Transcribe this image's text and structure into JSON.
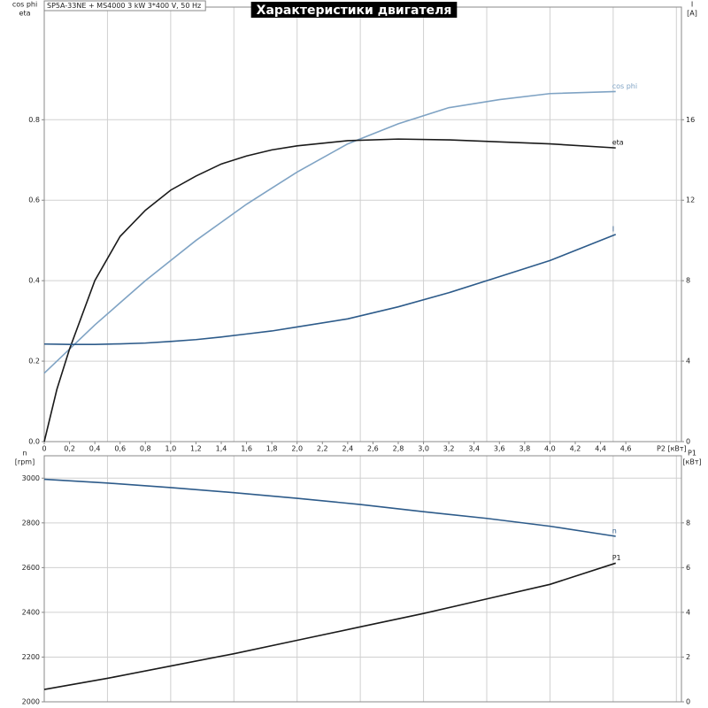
{
  "chart_data": [
    {
      "type": "line",
      "title": "Характеристики двигателя",
      "subtitle": "SP5A-33NE + MS4000  3 kW  3*400 V, 50 Hz",
      "ylabel": [
        "cos phi",
        "eta"
      ],
      "y2label": [
        "I",
        "[A]"
      ],
      "xlabel": "P2 [кВт]",
      "x": [
        0,
        0.1,
        0.2,
        0.4,
        0.6,
        0.8,
        1.0,
        1.2,
        1.4,
        1.6,
        1.8,
        2.0,
        2.4,
        2.8,
        3.2,
        3.6,
        4.0,
        4.52
      ],
      "series": [
        {
          "name": "cos phi",
          "color": "#7fa3c4",
          "values": [
            0.17,
            0.2,
            0.23,
            0.29,
            0.345,
            0.4,
            0.45,
            0.5,
            0.545,
            0.59,
            0.63,
            0.67,
            0.74,
            0.79,
            0.83,
            0.85,
            0.865,
            0.87
          ]
        },
        {
          "name": "eta",
          "color": "#1a1a1a",
          "values": [
            0,
            0.13,
            0.23,
            0.4,
            0.51,
            0.575,
            0.625,
            0.66,
            0.69,
            0.71,
            0.725,
            0.735,
            0.748,
            0.752,
            0.75,
            0.745,
            0.74,
            0.73
          ]
        },
        {
          "name": "I",
          "color": "#2d5b8a",
          "axis": "y2",
          "values": [
            4.85,
            4.84,
            4.83,
            4.83,
            4.86,
            4.9,
            4.98,
            5.07,
            5.2,
            5.35,
            5.5,
            5.7,
            6.1,
            6.7,
            7.4,
            8.2,
            9.0,
            10.3
          ]
        }
      ],
      "xlim": [
        0,
        5.04
      ],
      "xticks": [
        0,
        {
          "value": 0.2,
          "label": "0,2"
        },
        {
          "value": 0.4,
          "label": "0,4"
        },
        {
          "value": 0.6,
          "label": "0,6"
        },
        {
          "value": 0.8,
          "label": "0,8"
        },
        {
          "value": 1.0,
          "label": "1,0"
        },
        {
          "value": 1.2,
          "label": "1,2"
        },
        {
          "value": 1.4,
          "label": "1,4"
        },
        {
          "value": 1.6,
          "label": "1,6"
        },
        {
          "value": 1.8,
          "label": "1,8"
        },
        {
          "value": 2.0,
          "label": "2,0"
        },
        {
          "value": 2.2,
          "label": "2,2"
        },
        {
          "value": 2.4,
          "label": "2,4"
        },
        {
          "value": 2.6,
          "label": "2,6"
        },
        {
          "value": 2.8,
          "label": "2,8"
        },
        {
          "value": 3.0,
          "label": "3,0"
        },
        {
          "value": 3.2,
          "label": "3,2"
        },
        {
          "value": 3.4,
          "label": "3,4"
        },
        {
          "value": 3.6,
          "label": "3,6"
        },
        {
          "value": 3.8,
          "label": "3,8"
        },
        {
          "value": 4.0,
          "label": "4,0"
        },
        {
          "value": 4.2,
          "label": "4,2"
        },
        {
          "value": 4.4,
          "label": "4,4"
        },
        {
          "value": 4.6,
          "label": "4,6"
        }
      ],
      "xgrid": [
        0.5,
        1,
        1.5,
        2,
        2.5,
        3,
        3.5,
        4,
        4.5,
        5
      ],
      "ylim": [
        0,
        1.08
      ],
      "yticks": [
        {
          "value": 0,
          "label": "0.0"
        },
        0.2,
        0.4,
        0.6,
        0.8
      ],
      "y2lim": [
        0,
        21.6
      ],
      "y2ticks": [
        0,
        4,
        8,
        12,
        16
      ],
      "grid": true
    },
    {
      "type": "line",
      "ylabel": [
        "n",
        "[rpm]"
      ],
      "y2label": [
        "P1",
        "[кВт]"
      ],
      "x": [
        0,
        0.5,
        1.0,
        1.5,
        2.0,
        2.5,
        3.0,
        3.5,
        4.0,
        4.52
      ],
      "series": [
        {
          "name": "n",
          "color": "#2d5b8a",
          "values": [
            2995,
            2978,
            2958,
            2935,
            2910,
            2882,
            2850,
            2820,
            2785,
            2740
          ]
        },
        {
          "name": "P1",
          "color": "#1a1a1a",
          "axis": "y2",
          "values": [
            0.55,
            1.05,
            1.6,
            2.15,
            2.75,
            3.35,
            3.95,
            4.6,
            5.25,
            6.2
          ]
        }
      ],
      "xlim": [
        0,
        5.04
      ],
      "xgrid": [
        0.5,
        1,
        1.5,
        2,
        2.5,
        3,
        3.5,
        4,
        4.5,
        5
      ],
      "ylim": [
        2000,
        3100
      ],
      "yticks": [
        2000,
        2200,
        2400,
        2600,
        2800,
        3000
      ],
      "y2lim": [
        0,
        11
      ],
      "y2ticks": [
        0,
        2,
        4,
        6,
        8
      ],
      "grid": true
    }
  ]
}
